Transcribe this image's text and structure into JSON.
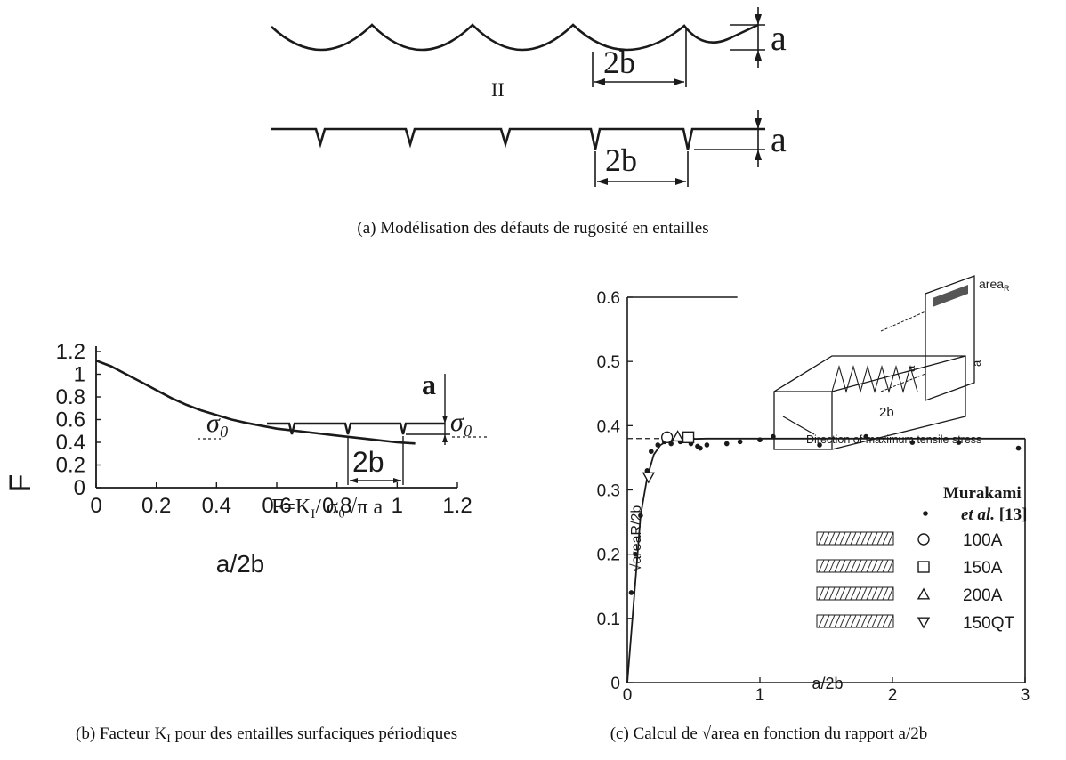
{
  "captions": {
    "a": "(a) Modélisation des défauts de rugosité en entailles",
    "b_prefix": "(b) Facteur K",
    "b_sub": "I",
    "b_suffix": " pour des entailles surfaciques périodiques",
    "c": "(c) Calcul de √area en fonction du rapport a/2b"
  },
  "diagram_a": {
    "label_a_top": "a",
    "label_2b_top": "2b",
    "equals": "II",
    "label_a_bottom": "a",
    "label_2b_bottom": "2b"
  },
  "chart_data": [
    {
      "type": "line",
      "xlabel": "a/2b",
      "ylabel": "F",
      "xlim": [
        0,
        1.2
      ],
      "ylim": [
        0,
        1.2
      ],
      "xticks": [
        "0",
        "0.2",
        "0.4",
        "0.6",
        "0.8",
        "1",
        "1.2"
      ],
      "yticks": [
        "0",
        "0.2",
        "0.4",
        "0.6",
        "0.8",
        "1",
        "1.2"
      ],
      "series": [
        {
          "x": [
            0,
            0.05,
            0.1,
            0.15,
            0.2,
            0.25,
            0.3,
            0.35,
            0.4,
            0.45,
            0.5,
            0.6,
            0.7,
            0.8,
            0.9,
            1.0,
            1.06
          ],
          "y": [
            1.12,
            1.07,
            1.0,
            0.93,
            0.86,
            0.79,
            0.73,
            0.68,
            0.64,
            0.6,
            0.57,
            0.52,
            0.49,
            0.46,
            0.43,
            0.4,
            0.39
          ]
        }
      ],
      "annotations": {
        "formula": "F=K",
        "formula_sub": "I",
        "formula_rest": "/ σ₀√π a",
        "sigma_left": "σ₀",
        "sigma_right": "σ₀",
        "label_a": "a",
        "label_2b": "2b"
      }
    },
    {
      "type": "scatter",
      "xlabel": "a/2b",
      "ylabel": "√areaR/2b",
      "xlim": [
        0,
        3
      ],
      "ylim": [
        0,
        0.6
      ],
      "xticks": [
        "0",
        "1",
        "2",
        "3"
      ],
      "yticks": [
        "0",
        "0.1",
        "0.2",
        "0.3",
        "0.4",
        "0.5",
        "0.6"
      ],
      "curve": {
        "x": [
          0,
          0.05,
          0.1,
          0.15,
          0.2,
          0.25,
          0.3,
          0.4,
          0.6,
          1.0,
          3.0
        ],
        "y": [
          0.0,
          0.13,
          0.26,
          0.32,
          0.355,
          0.37,
          0.376,
          0.379,
          0.38,
          0.38,
          0.38
        ]
      },
      "asymptote": 0.38,
      "series": [
        {
          "name": "Murakami et al. [13]",
          "marker": "dot",
          "x": [
            0.03,
            0.06,
            0.1,
            0.15,
            0.18,
            0.23,
            0.28,
            0.33,
            0.4,
            0.48,
            0.53,
            0.55,
            0.6,
            0.75,
            0.85,
            1.0,
            1.1,
            1.45,
            1.8,
            2.15,
            2.5,
            2.95
          ],
          "y": [
            0.14,
            0.2,
            0.26,
            0.33,
            0.36,
            0.37,
            0.375,
            0.372,
            0.375,
            0.372,
            0.368,
            0.365,
            0.37,
            0.372,
            0.375,
            0.378,
            0.383,
            0.37,
            0.383,
            0.374,
            0.374,
            0.365
          ]
        },
        {
          "name": "100A",
          "marker": "circle",
          "x": [
            0.3
          ],
          "y": [
            0.382
          ]
        },
        {
          "name": "150A",
          "marker": "square",
          "x": [
            0.46
          ],
          "y": [
            0.382
          ]
        },
        {
          "name": "200A",
          "marker": "triangle-up",
          "x": [
            0.38
          ],
          "y": [
            0.383
          ]
        },
        {
          "name": "150QT",
          "marker": "triangle-down",
          "x": [
            0.16
          ],
          "y": [
            0.32
          ]
        }
      ],
      "legend": {
        "title_line1": "Murakami",
        "title_line2_italic": "et al.",
        "title_ref": " [13]",
        "position": "right"
      },
      "inset": {
        "area_label": "area",
        "area_sub": "R",
        "label_a1": "a",
        "label_a2": "a",
        "label_2b": "2b",
        "direction": "Direction of maximum tensile stress"
      }
    }
  ]
}
